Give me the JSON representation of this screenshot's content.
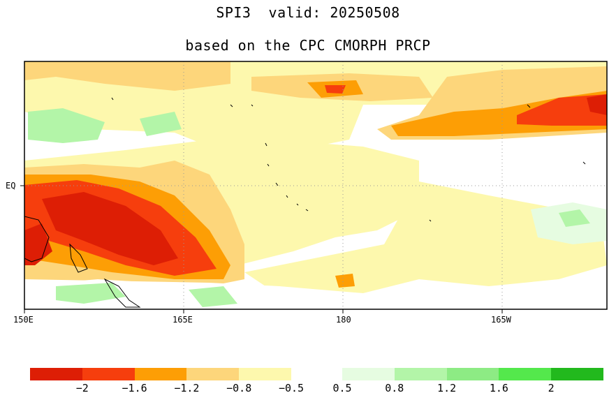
{
  "title": {
    "line1": "SPI3  valid: 20250508",
    "line2": "based on the CPC CMORPH PRCP"
  },
  "axes": {
    "x_ticks": [
      "150E",
      "165E",
      "180",
      "165W"
    ],
    "y_ticks": [
      "EQ"
    ]
  },
  "colorbar": {
    "dry_colors": [
      "#dd1e05",
      "#f63e0d",
      "#fd9e05",
      "#fdd67b",
      "#fdf8ad"
    ],
    "wet_colors": [
      "#e6fce1",
      "#b3f5a8",
      "#8deb84",
      "#54e84c",
      "#22b91d"
    ],
    "dry_labels": [
      "-2",
      "-1.6",
      "-1.2",
      "-0.8",
      "-0.5"
    ],
    "wet_labels": [
      "0.5",
      "0.8",
      "1.2",
      "1.6",
      "2"
    ]
  },
  "map": {
    "description_values": "SPI3 anomaly field over tropical western/central Pacific"
  }
}
